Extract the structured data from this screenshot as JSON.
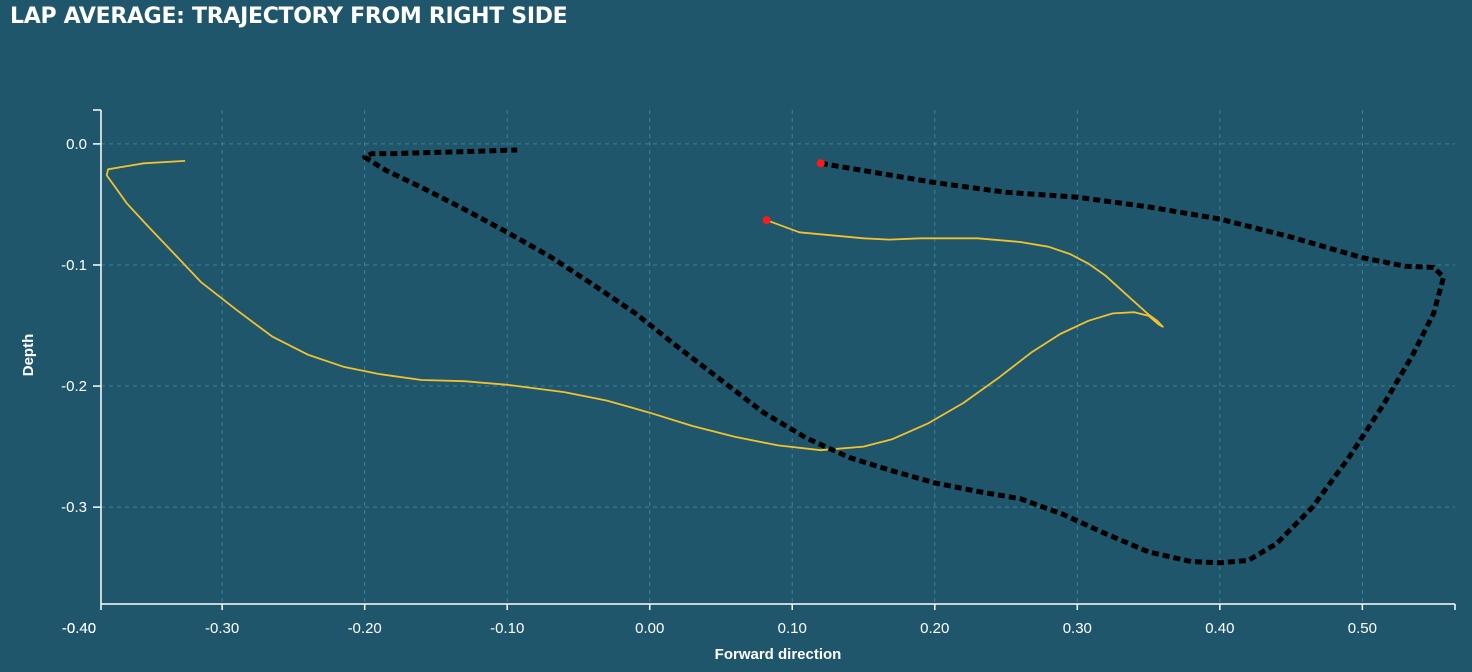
{
  "page": {
    "title": "LAP AVERAGE: TRAJECTORY FROM RIGHT SIDE"
  },
  "colors": {
    "background": "#1f566b",
    "grid": "#3f8aa3",
    "axis": "#ffffff",
    "trajectory_a": "#f2c12e",
    "trajectory_b": "#000000",
    "start_marker": "#ff1a1a"
  },
  "chart_data": {
    "type": "line",
    "title": "LAP AVERAGE: TRAJECTORY FROM RIGHT SIDE",
    "xlabel": "Forward direction",
    "ylabel": "Depth",
    "xlim": [
      -0.385,
      0.565
    ],
    "ylim": [
      -0.38,
      0.028
    ],
    "grid": true,
    "x_ticks": [
      -0.4,
      -0.3,
      -0.2,
      -0.1,
      0.0,
      0.1,
      0.2,
      0.3,
      0.4,
      0.5
    ],
    "x_tick_labels": [
      "-0.40",
      "-0.30",
      "-0.20",
      "-0.10",
      "0.00",
      "0.10",
      "0.20",
      "0.30",
      "0.40",
      "0.50"
    ],
    "y_ticks": [
      0.0,
      -0.1,
      -0.2,
      -0.3
    ],
    "y_tick_labels": [
      "0.0",
      "-0.1",
      "-0.2",
      "-0.3"
    ],
    "series": [
      {
        "style": "solid",
        "color": "#f2c12e",
        "start_marker": true,
        "points": [
          [
            0.082,
            -0.063
          ],
          [
            0.105,
            -0.073
          ],
          [
            0.15,
            -0.078
          ],
          [
            0.168,
            -0.079
          ],
          [
            0.19,
            -0.078
          ],
          [
            0.23,
            -0.078
          ],
          [
            0.26,
            -0.081
          ],
          [
            0.28,
            -0.085
          ],
          [
            0.295,
            -0.091
          ],
          [
            0.308,
            -0.099
          ],
          [
            0.32,
            -0.109
          ],
          [
            0.335,
            -0.125
          ],
          [
            0.35,
            -0.141
          ],
          [
            0.356,
            -0.146
          ],
          [
            0.36,
            -0.151
          ],
          [
            0.357,
            -0.149
          ],
          [
            0.35,
            -0.142
          ],
          [
            0.34,
            -0.139
          ],
          [
            0.325,
            -0.14
          ],
          [
            0.308,
            -0.146
          ],
          [
            0.288,
            -0.157
          ],
          [
            0.268,
            -0.172
          ],
          [
            0.245,
            -0.193
          ],
          [
            0.22,
            -0.214
          ],
          [
            0.195,
            -0.231
          ],
          [
            0.17,
            -0.244
          ],
          [
            0.15,
            -0.25
          ],
          [
            0.12,
            -0.253
          ],
          [
            0.09,
            -0.249
          ],
          [
            0.06,
            -0.242
          ],
          [
            0.03,
            -0.233
          ],
          [
            0.0,
            -0.222
          ],
          [
            -0.03,
            -0.212
          ],
          [
            -0.06,
            -0.205
          ],
          [
            -0.1,
            -0.199
          ],
          [
            -0.13,
            -0.196
          ],
          [
            -0.16,
            -0.195
          ],
          [
            -0.19,
            -0.19
          ],
          [
            -0.215,
            -0.184
          ],
          [
            -0.24,
            -0.174
          ],
          [
            -0.265,
            -0.159
          ],
          [
            -0.29,
            -0.137
          ],
          [
            -0.315,
            -0.114
          ],
          [
            -0.335,
            -0.089
          ],
          [
            -0.352,
            -0.068
          ],
          [
            -0.367,
            -0.049
          ],
          [
            -0.376,
            -0.034
          ],
          [
            -0.381,
            -0.026
          ],
          [
            -0.38,
            -0.021
          ],
          [
            -0.37,
            -0.019
          ],
          [
            -0.355,
            -0.016
          ],
          [
            -0.326,
            -0.014
          ]
        ]
      },
      {
        "style": "dashed",
        "color": "#000000",
        "start_marker": true,
        "points": [
          [
            0.12,
            -0.016
          ],
          [
            0.16,
            -0.024
          ],
          [
            0.2,
            -0.032
          ],
          [
            0.25,
            -0.04
          ],
          [
            0.3,
            -0.044
          ],
          [
            0.35,
            -0.052
          ],
          [
            0.4,
            -0.062
          ],
          [
            0.45,
            -0.077
          ],
          [
            0.5,
            -0.094
          ],
          [
            0.53,
            -0.101
          ],
          [
            0.55,
            -0.102
          ],
          [
            0.557,
            -0.11
          ],
          [
            0.55,
            -0.14
          ],
          [
            0.535,
            -0.175
          ],
          [
            0.515,
            -0.215
          ],
          [
            0.49,
            -0.26
          ],
          [
            0.465,
            -0.3
          ],
          [
            0.44,
            -0.33
          ],
          [
            0.42,
            -0.344
          ],
          [
            0.4,
            -0.346
          ],
          [
            0.38,
            -0.345
          ],
          [
            0.35,
            -0.337
          ],
          [
            0.32,
            -0.322
          ],
          [
            0.29,
            -0.306
          ],
          [
            0.26,
            -0.293
          ],
          [
            0.23,
            -0.287
          ],
          [
            0.2,
            -0.28
          ],
          [
            0.17,
            -0.27
          ],
          [
            0.14,
            -0.259
          ],
          [
            0.11,
            -0.243
          ],
          [
            0.08,
            -0.222
          ],
          [
            0.05,
            -0.195
          ],
          [
            0.02,
            -0.168
          ],
          [
            -0.01,
            -0.14
          ],
          [
            -0.04,
            -0.116
          ],
          [
            -0.07,
            -0.093
          ],
          [
            -0.1,
            -0.073
          ],
          [
            -0.13,
            -0.054
          ],
          [
            -0.16,
            -0.036
          ],
          [
            -0.185,
            -0.022
          ],
          [
            -0.2,
            -0.011
          ],
          [
            -0.195,
            -0.008
          ],
          [
            -0.18,
            -0.008
          ],
          [
            -0.15,
            -0.007
          ],
          [
            -0.12,
            -0.006
          ],
          [
            -0.093,
            -0.005
          ]
        ]
      }
    ]
  }
}
